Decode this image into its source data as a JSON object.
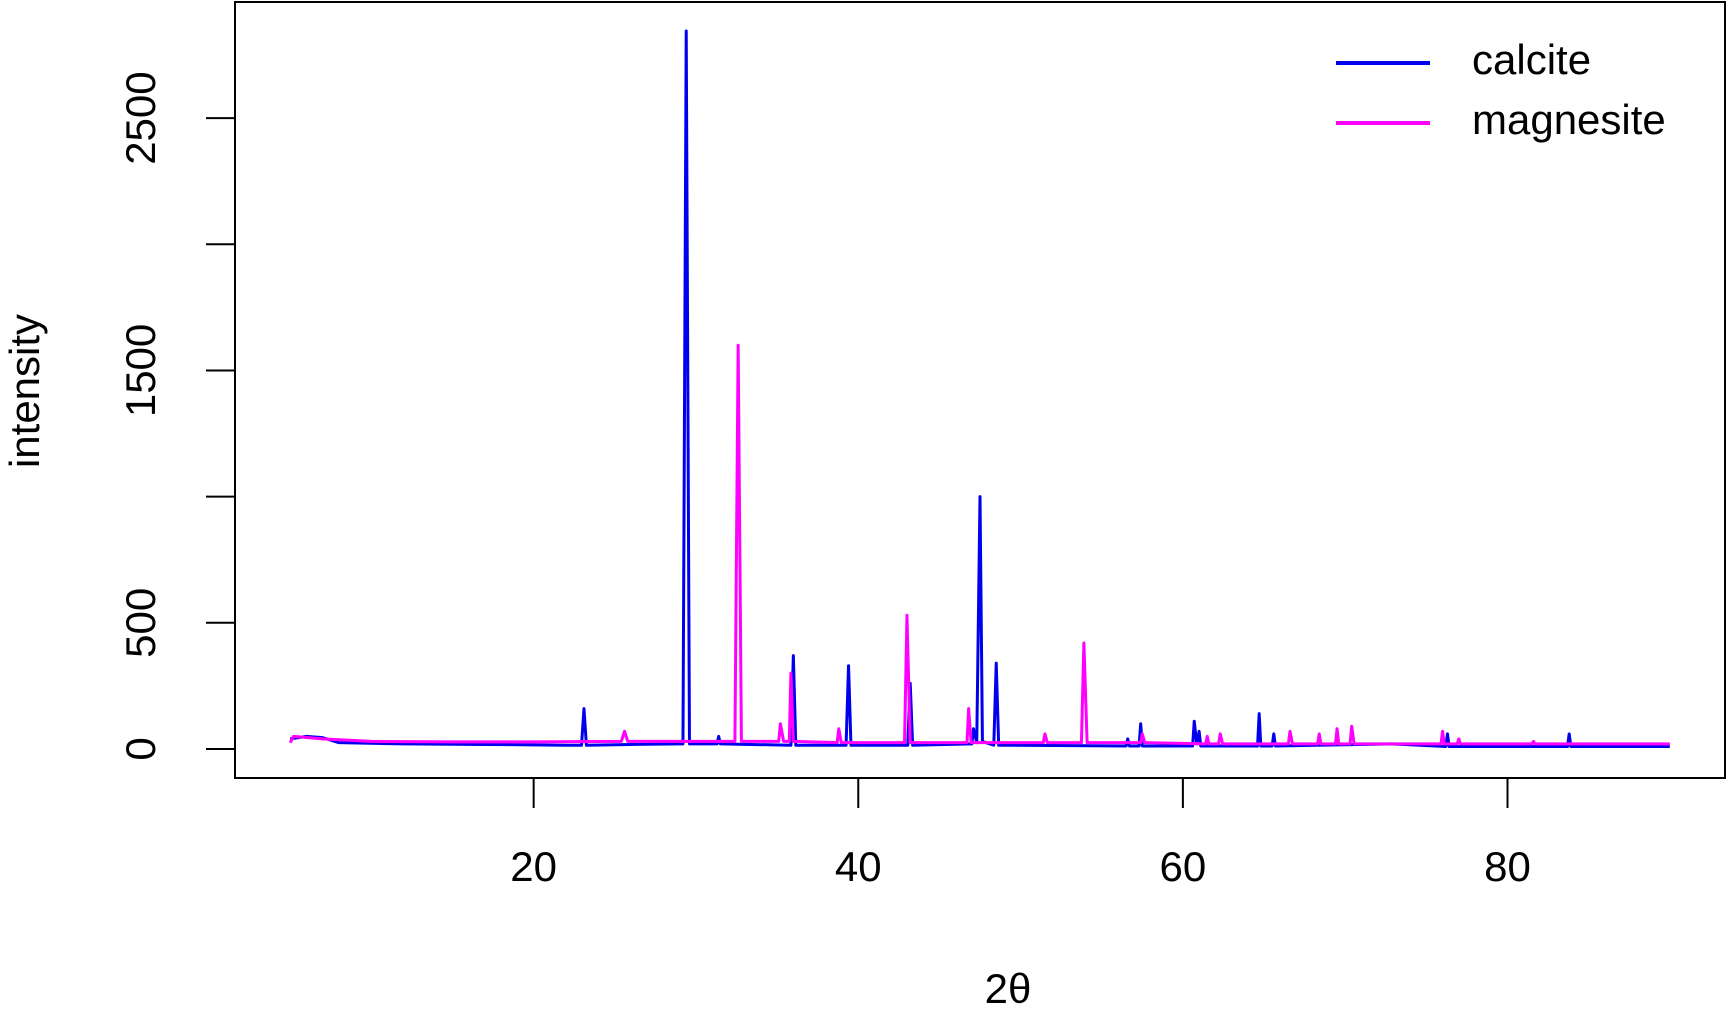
{
  "chart_data": {
    "type": "line",
    "xlabel": "2θ",
    "ylabel": "intensity",
    "xlim": [
      1.6,
      93.4
    ],
    "ylim": [
      -115,
      2960
    ],
    "xticks": [
      20,
      40,
      60,
      80
    ],
    "yticks": [
      0,
      500,
      {
        "value": 1000,
        "label": null
      },
      1500,
      {
        "value": 2000,
        "label": null
      },
      2500
    ],
    "legend": "topright",
    "series": [
      {
        "name": "calcite",
        "color": "#0000ee",
        "x": [
          5,
          6,
          7,
          8,
          12,
          17,
          22,
          22.95,
          23.1,
          23.25,
          26,
          29.2,
          29.4,
          29.6,
          31.3,
          31.4,
          31.5,
          35.85,
          36.0,
          36.15,
          39.25,
          39.4,
          39.55,
          43.05,
          43.2,
          43.35,
          47.0,
          47.1,
          47.3,
          47.5,
          47.65,
          48.35,
          48.5,
          48.65,
          56.5,
          56.6,
          56.7,
          57.3,
          57.4,
          57.5,
          60.6,
          60.7,
          60.85,
          61.0,
          61.1,
          64.6,
          64.7,
          64.8,
          65.5,
          65.6,
          65.7,
          72.9,
          76.2,
          76.3,
          76.4,
          83.7,
          83.8,
          83.9,
          90
        ],
        "values": [
          40,
          50,
          45,
          25,
          20,
          18,
          15,
          15,
          160,
          15,
          18,
          20,
          2845,
          20,
          20,
          50,
          20,
          15,
          370,
          15,
          15,
          330,
          15,
          15,
          260,
          15,
          20,
          80,
          25,
          1000,
          30,
          15,
          340,
          15,
          12,
          40,
          12,
          12,
          100,
          12,
          12,
          110,
          20,
          70,
          12,
          12,
          140,
          12,
          12,
          60,
          12,
          20,
          10,
          60,
          10,
          10,
          60,
          10,
          10
        ]
      },
      {
        "name": "magnesite",
        "color": "#ff00ff",
        "x": [
          5,
          5.2,
          7,
          10,
          15,
          20,
          25.4,
          25.6,
          25.8,
          32.4,
          32.6,
          32.8,
          35.1,
          35.2,
          35.4,
          35.75,
          35.85,
          36.0,
          38.7,
          38.8,
          38.95,
          42.85,
          43.0,
          43.2,
          46.7,
          46.8,
          46.95,
          51.4,
          51.5,
          51.65,
          53.75,
          53.9,
          54.1,
          57.4,
          57.5,
          57.65,
          61.4,
          61.5,
          61.6,
          62.2,
          62.3,
          62.45,
          66.5,
          66.6,
          66.75,
          68.3,
          68.4,
          68.5,
          69.4,
          69.5,
          69.6,
          70.3,
          70.4,
          70.55,
          75.9,
          76.0,
          76.1,
          76.9,
          77.0,
          77.1,
          81.5,
          81.6,
          81.7,
          90
        ],
        "values": [
          25,
          50,
          40,
          30,
          28,
          28,
          30,
          70,
          30,
          30,
          1600,
          30,
          30,
          100,
          30,
          30,
          300,
          30,
          25,
          80,
          25,
          25,
          530,
          25,
          25,
          160,
          25,
          25,
          60,
          25,
          25,
          420,
          25,
          25,
          60,
          25,
          20,
          50,
          20,
          20,
          60,
          20,
          20,
          70,
          20,
          20,
          60,
          20,
          20,
          80,
          20,
          20,
          90,
          20,
          20,
          70,
          20,
          20,
          40,
          20,
          20,
          30,
          20,
          20
        ]
      }
    ]
  }
}
